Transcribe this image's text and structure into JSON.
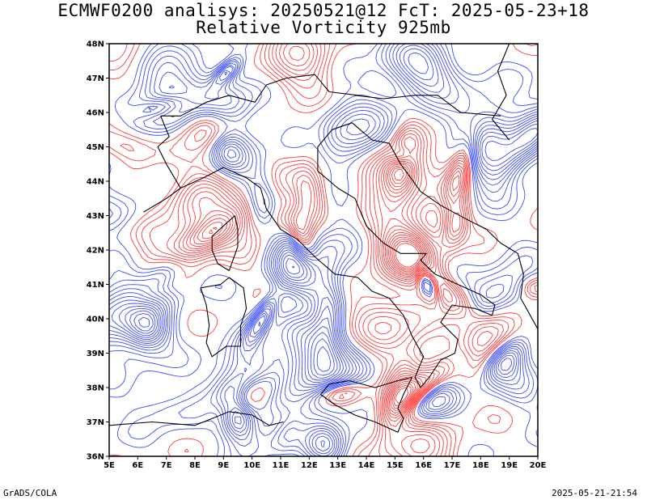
{
  "title": {
    "line1": "ECMWF0200 analisys: 20250521@12 FcT: 2025-05-23+18",
    "line2": "Relative Vorticity 925mb"
  },
  "lat_labels": [
    "36N",
    "37N",
    "38N",
    "39N",
    "40N",
    "41N",
    "42N",
    "43N",
    "44N",
    "45N",
    "46N",
    "47N",
    "48N"
  ],
  "lon_labels": [
    "5E",
    "6E",
    "7E",
    "8E",
    "9E",
    "10E",
    "11E",
    "12E",
    "13E",
    "14E",
    "15E",
    "16E",
    "17E",
    "18E",
    "19E",
    "20E"
  ],
  "colors": {
    "positive_vorticity": "#ff3b3b",
    "negative_vorticity": "#3b4bff",
    "coastline": "#000000",
    "frame": "#000000"
  },
  "footer": {
    "left": "GrADS/COLA",
    "right": "2025-05-21-21:54"
  }
}
